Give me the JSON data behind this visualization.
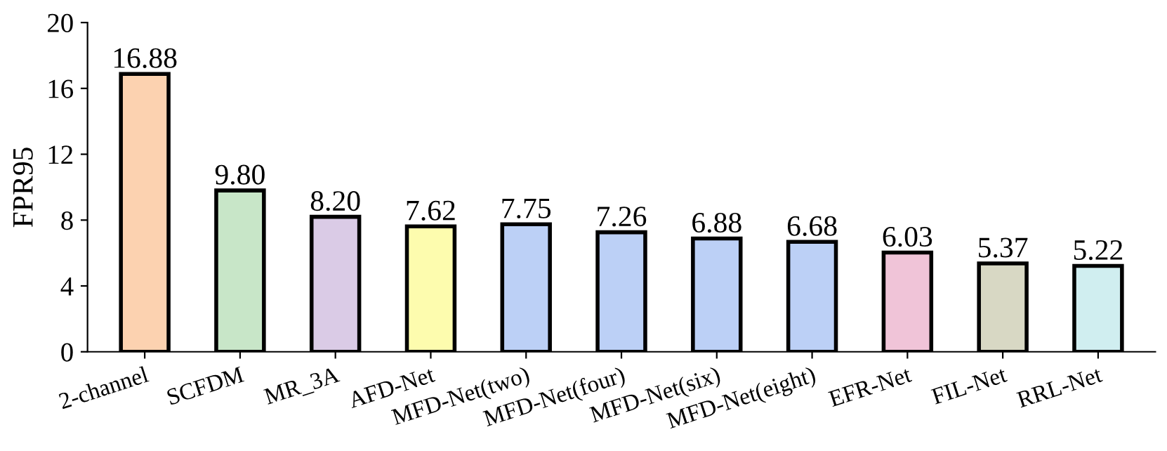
{
  "chart_data": {
    "type": "bar",
    "ylabel": "FPR95",
    "categories": [
      "2-channel",
      "SCFDM",
      "MR_3A",
      "AFD-Net",
      "MFD-Net(two)",
      "MFD-Net(four)",
      "MFD-Net(six)",
      "MFD-Net(eight)",
      "EFR-Net",
      "FIL-Net",
      "RRL-Net"
    ],
    "values": [
      16.88,
      9.8,
      8.2,
      7.62,
      7.75,
      7.26,
      6.88,
      6.68,
      6.03,
      5.37,
      5.22
    ],
    "value_labels": [
      "16.88",
      "9.80",
      "8.20",
      "7.62",
      "7.75",
      "7.26",
      "6.88",
      "6.68",
      "6.03",
      "5.37",
      "5.22"
    ],
    "colors": [
      "#fcd2b0",
      "#c8e6c8",
      "#dacbe6",
      "#fdfcae",
      "#bcd0f6",
      "#bcd0f6",
      "#bcd0f6",
      "#bcd0f6",
      "#f0c4d8",
      "#d8d8c4",
      "#d0eef0"
    ],
    "ylim": [
      0,
      20
    ],
    "yticks": [
      0,
      4,
      8,
      12,
      16,
      20
    ],
    "grid": false,
    "legend": false
  }
}
